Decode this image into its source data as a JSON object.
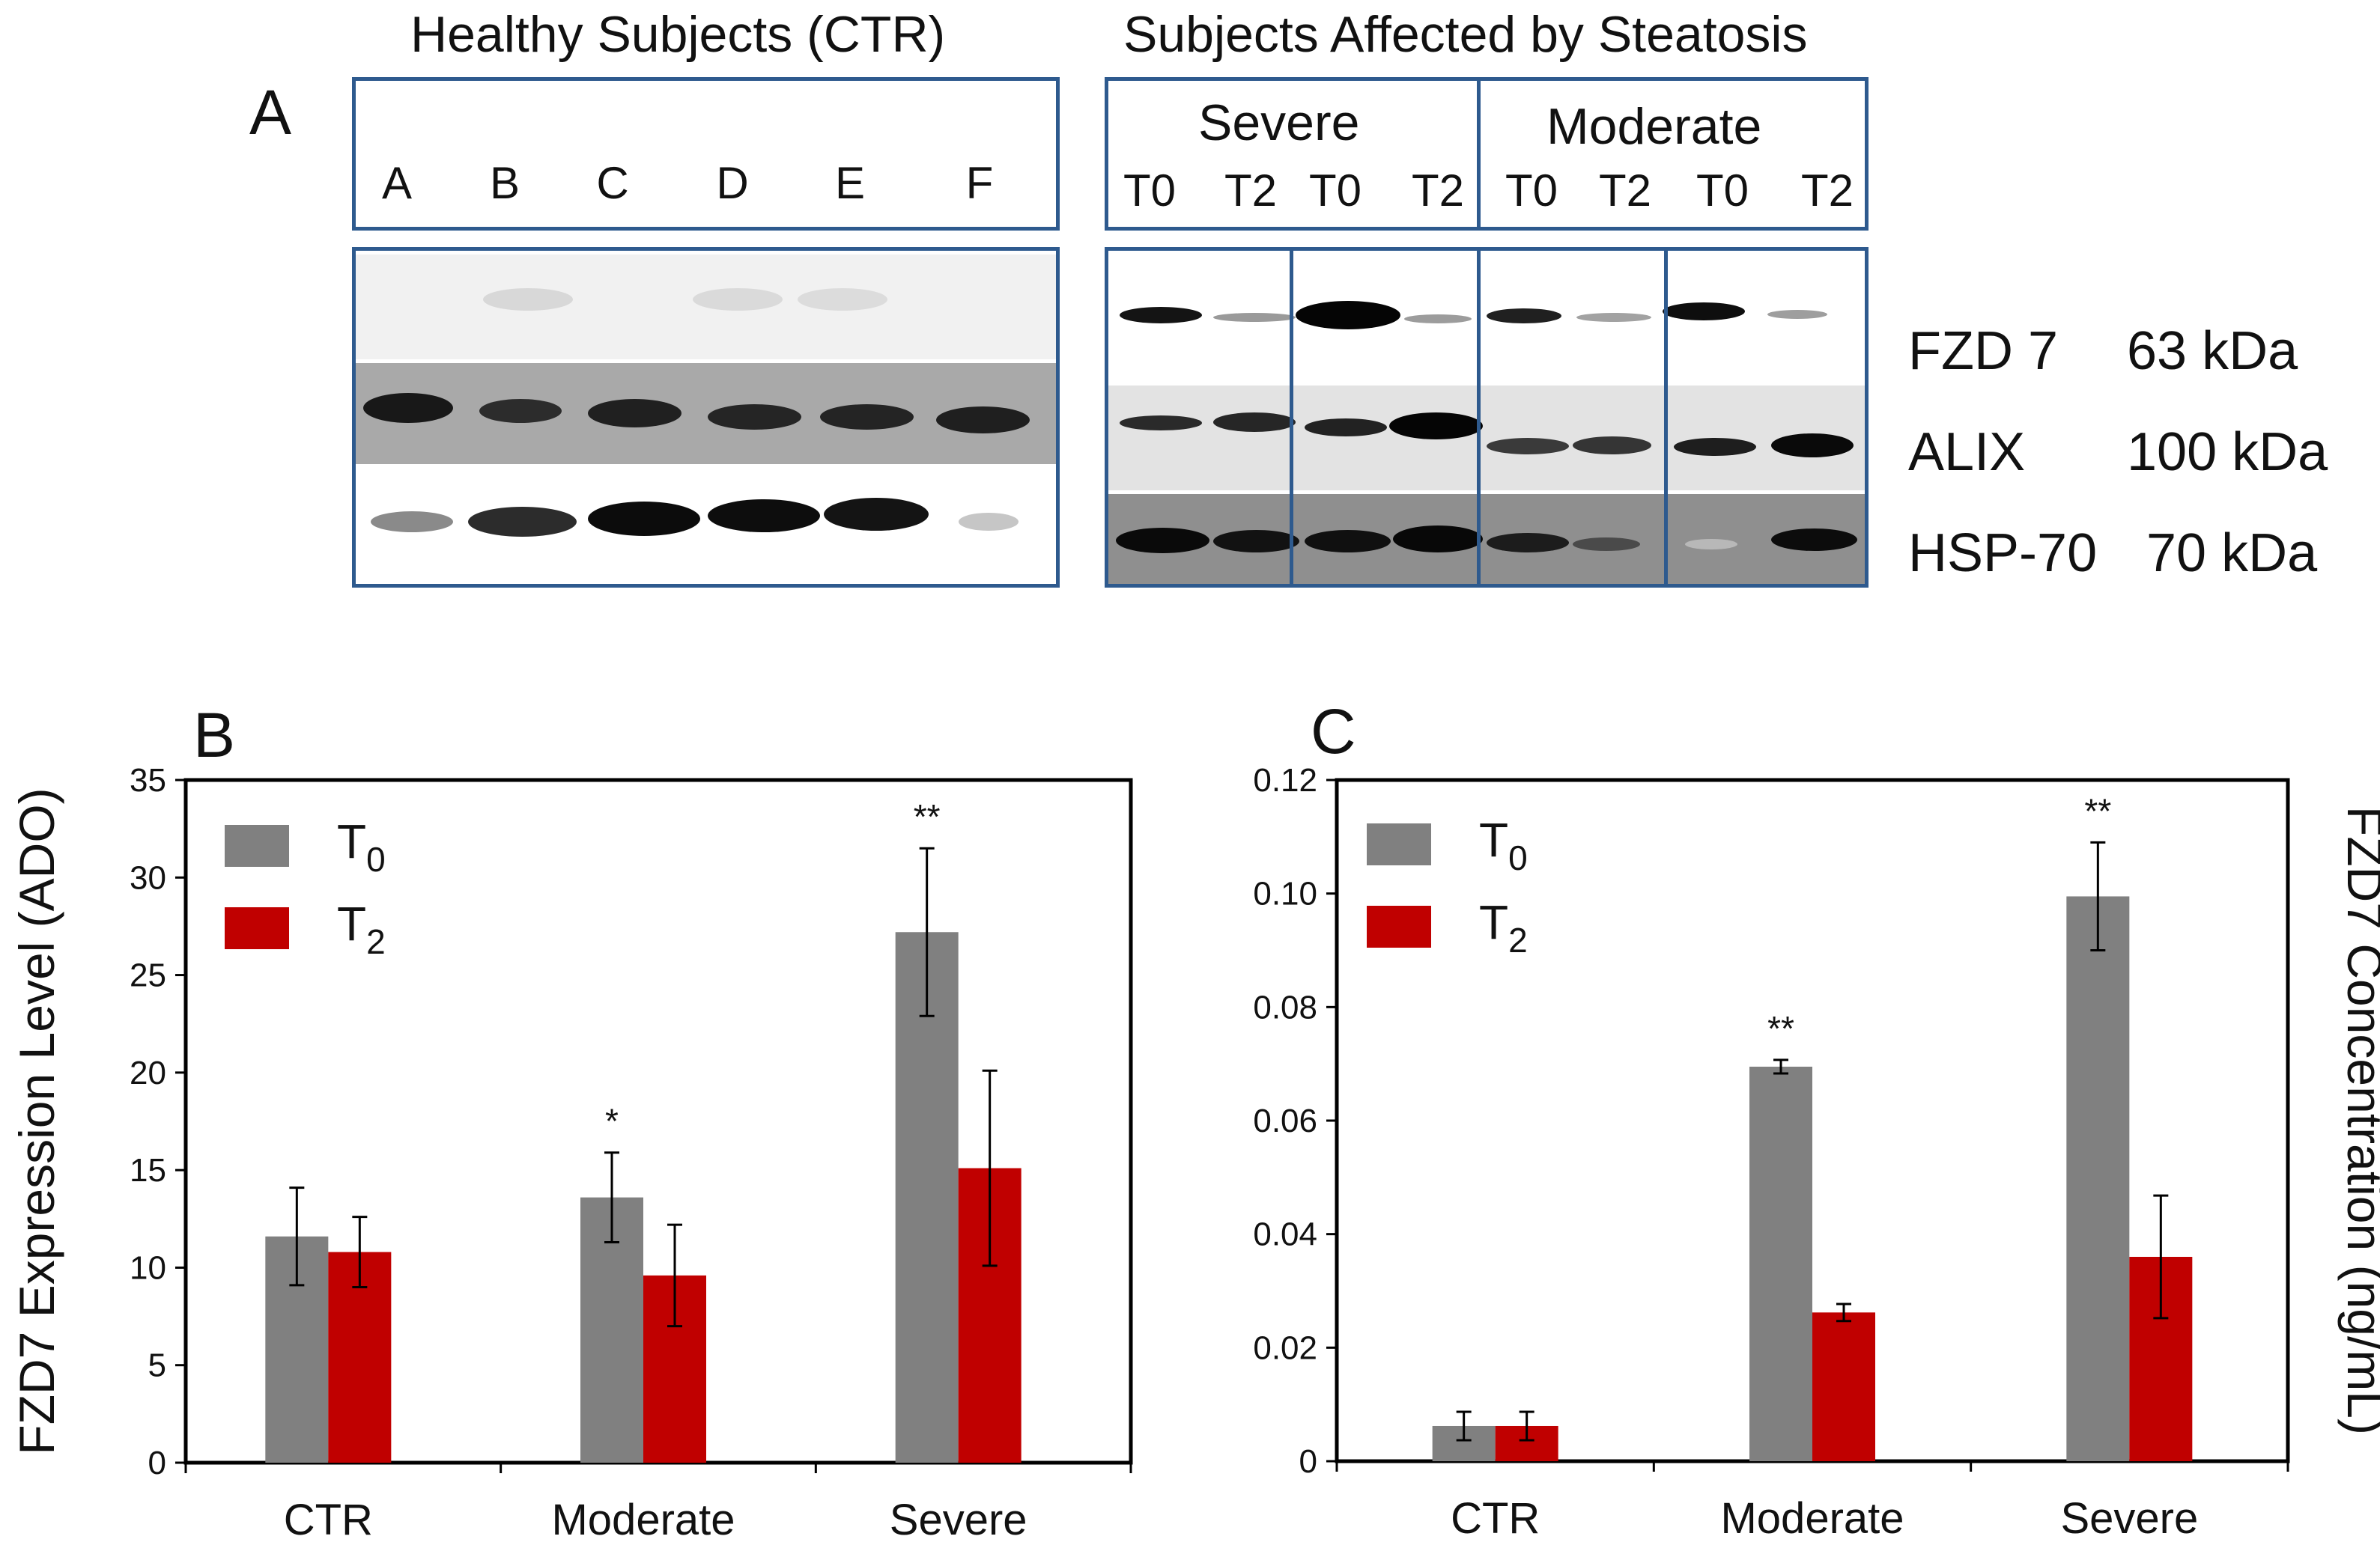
{
  "panel_a": {
    "letter": "A",
    "ctr_header": "Healthy Subjects (CTR)",
    "steatosis_header": "Subjects Affected by Steatosis",
    "severe_label": "Severe",
    "moderate_label": "Moderate",
    "ctr_lanes": [
      "A",
      "B",
      "C",
      "D",
      "E",
      "F"
    ],
    "tp_lanes": [
      "T0",
      "T2",
      "T0",
      "T2",
      "T0",
      "T2",
      "T0",
      "T2"
    ],
    "proteins": [
      {
        "name": "FZD 7",
        "mw": "63 kDa"
      },
      {
        "name": "ALIX",
        "mw": "100 kDa"
      },
      {
        "name": "HSP-70",
        "mw": "70 kDa"
      }
    ],
    "blot_colors": {
      "border": "#2e5a8e",
      "band": "#111111"
    }
  },
  "chart_data": [
    {
      "type": "bar",
      "panel": "B",
      "categories": [
        "CTR",
        "Moderate",
        "Severe"
      ],
      "series": [
        {
          "name": "T0",
          "values": [
            11.6,
            13.6,
            27.2
          ],
          "errors": [
            2.5,
            2.3,
            4.3
          ],
          "color": "#808080"
        },
        {
          "name": "T2",
          "values": [
            10.8,
            9.6,
            15.1
          ],
          "errors": [
            1.8,
            2.6,
            5.0
          ],
          "color": "#c00000"
        }
      ],
      "annotations": [
        {
          "category": "Moderate",
          "series": "T0",
          "text": "*"
        },
        {
          "category": "Severe",
          "series": "T0",
          "text": "**"
        }
      ],
      "ylabel": "FZD7 Expression Level (ADO)",
      "xlabel": "",
      "ylim": [
        0,
        35
      ],
      "yticks": [
        "0",
        "5",
        "10",
        "15",
        "20",
        "25",
        "30",
        "35"
      ],
      "legend_position": "top-left",
      "grid": false
    },
    {
      "type": "bar",
      "panel": "C",
      "categories": [
        "CTR",
        "Moderate",
        "Severe"
      ],
      "series": [
        {
          "name": "T0",
          "values": [
            0.0062,
            0.0695,
            0.0995
          ],
          "errors": [
            0.0025,
            0.0012,
            0.0095
          ],
          "color": "#808080"
        },
        {
          "name": "T2",
          "values": [
            0.0062,
            0.0262,
            0.036
          ],
          "errors": [
            0.0025,
            0.0015,
            0.0108
          ],
          "color": "#c00000"
        }
      ],
      "annotations": [
        {
          "category": "Moderate",
          "series": "T0",
          "text": "**"
        },
        {
          "category": "Severe",
          "series": "T0",
          "text": "**"
        }
      ],
      "ylabel": "FZD7 Concentration (ng/mL)",
      "xlabel": "",
      "ylim": [
        0,
        0.12
      ],
      "yticks": [
        "0",
        "0.02",
        "0.04",
        "0.06",
        "0.08",
        "0.10",
        "0.12"
      ],
      "legend_position": "top-left",
      "grid": false
    }
  ]
}
